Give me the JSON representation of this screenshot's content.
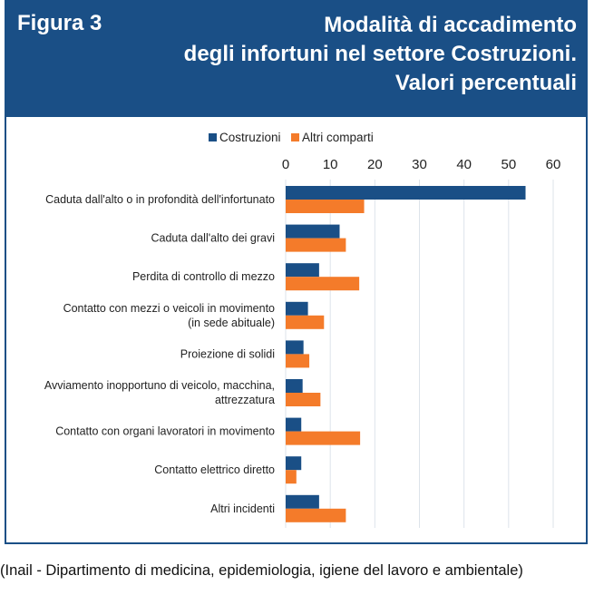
{
  "header": {
    "figure_label": "Figura 3",
    "title_lines": [
      "Modalità di accadimento",
      "degli infortuni nel settore Costruzioni.",
      "Valori percentuali"
    ]
  },
  "footer": {
    "source": "(Inail - Dipartimento di medicina, epidemiologia, igiene del lavoro e ambientale)"
  },
  "chart_data": {
    "type": "bar",
    "orientation": "horizontal",
    "title": "Modalità di accadimento degli infortuni nel settore Costruzioni. Valori percentuali",
    "xlim": [
      0,
      60
    ],
    "xticks": [
      0,
      10,
      20,
      30,
      40,
      50,
      60
    ],
    "grid": true,
    "legend_position": "top",
    "categories": [
      [
        "Caduta dall'alto o in profondità dell'infortunato"
      ],
      [
        "Caduta dall'alto dei gravi"
      ],
      [
        "Perdita di controllo di mezzo"
      ],
      [
        "Contatto con mezzi o veicoli in movimento",
        "(in sede abituale)"
      ],
      [
        "Proiezione di solidi"
      ],
      [
        "Avviamento inopportuno di veicolo, macchina,",
        "attrezzatura"
      ],
      [
        "Contatto con organi lavoratori in movimento"
      ],
      [
        "Contatto elettrico diretto"
      ],
      [
        "Altri incidenti"
      ]
    ],
    "series": [
      {
        "name": "Costruzioni",
        "color": "#1a4f86",
        "values": [
          53.8,
          12.1,
          7.5,
          5.0,
          4.0,
          3.8,
          3.5,
          3.5,
          7.5
        ]
      },
      {
        "name": "Altri comparti",
        "color": "#f47b2a",
        "values": [
          17.6,
          13.5,
          16.5,
          8.6,
          5.3,
          7.8,
          16.7,
          2.4,
          13.5
        ]
      }
    ]
  }
}
